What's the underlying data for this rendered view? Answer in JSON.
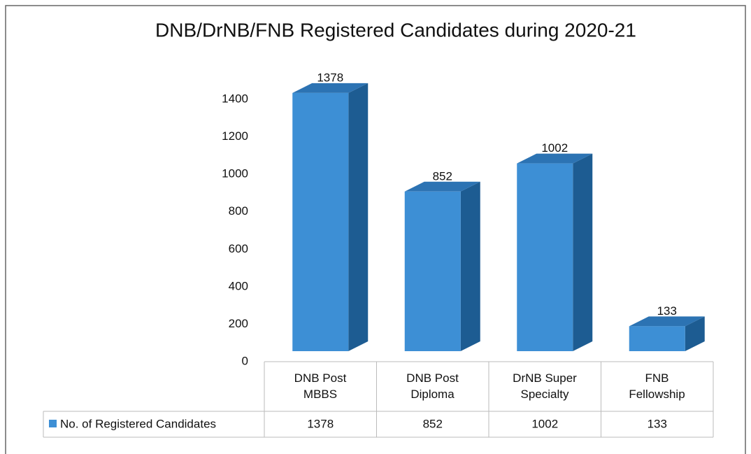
{
  "chart_data": {
    "type": "bar3d",
    "title": "DNB/DrNB/FNB Registered Candidates during 2020-21",
    "categories": [
      "DNB Post\nMBBS",
      "DNB Post\nDiploma",
      "DrNB Super\nSpecialty",
      "FNB\nFellowship"
    ],
    "series": [
      {
        "name": "No. of Registered Candidates",
        "color": "#3d8fd5",
        "values": [
          1378,
          852,
          1002,
          133
        ]
      }
    ],
    "ylim": [
      0,
      1400
    ],
    "yticks": [
      0,
      200,
      400,
      600,
      800,
      1000,
      1200,
      1400
    ],
    "legend": "table"
  }
}
